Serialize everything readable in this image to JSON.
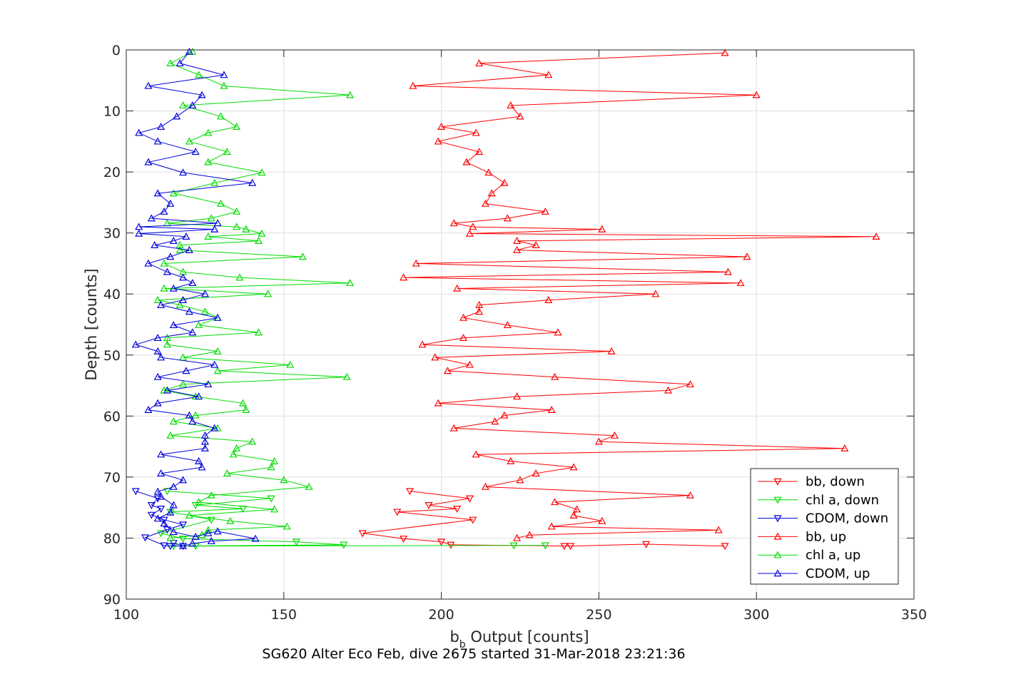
{
  "chart_data": {
    "type": "line",
    "title": "",
    "xlabel_main": "b",
    "xlabel_sub": "b",
    "xlabel_rest": " Output [counts]",
    "ylabel": "Depth [counts]",
    "caption": "SG620 Alter Eco Feb, dive 2675 started 31-Mar-2018 23:21:36",
    "xlim": [
      100,
      350
    ],
    "ylim": [
      0,
      90
    ],
    "y_reversed": true,
    "grid": true,
    "legend_placement": "bottom-right",
    "xticks": [
      "100",
      "150",
      "200",
      "250",
      "300",
      "350"
    ],
    "yticks": [
      "0",
      "10",
      "20",
      "30",
      "40",
      "50",
      "60",
      "70",
      "80",
      "90"
    ],
    "series": [
      {
        "name": "bb, down",
        "color": "#ff0000",
        "marker": "triangle-down",
        "points": [
          [
            190,
            72.3
          ],
          [
            209,
            73.5
          ],
          [
            196,
            74.6
          ],
          [
            205,
            75.2
          ],
          [
            186,
            75.7
          ],
          [
            210,
            77
          ],
          [
            175,
            79.2
          ],
          [
            188,
            80.1
          ],
          [
            200,
            80.6
          ],
          [
            203,
            81.1
          ],
          [
            239,
            81.3
          ],
          [
            241,
            81.3
          ],
          [
            265,
            81
          ],
          [
            290,
            81.3
          ]
        ]
      },
      {
        "name": "chl a, down",
        "color": "#00dd00",
        "marker": "triangle-down",
        "points": [
          [
            113,
            72.3
          ],
          [
            146,
            73.5
          ],
          [
            122,
            74.6
          ],
          [
            137,
            75.2
          ],
          [
            114,
            75.7
          ],
          [
            127,
            77
          ],
          [
            111,
            79.2
          ],
          [
            118,
            80.1
          ],
          [
            154,
            80.6
          ],
          [
            169,
            81.1
          ],
          [
            115,
            81.3
          ],
          [
            122,
            81.3
          ],
          [
            233,
            81.2
          ],
          [
            223,
            81.2
          ]
        ]
      },
      {
        "name": "CDOM, down",
        "color": "#0000dd",
        "marker": "triangle-down",
        "points": [
          [
            103,
            72.3
          ],
          [
            110,
            73.5
          ],
          [
            108,
            74.6
          ],
          [
            111,
            75.2
          ],
          [
            108,
            76.2
          ],
          [
            112,
            77
          ],
          [
            118,
            77.8
          ],
          [
            113,
            78.6
          ],
          [
            106,
            79.9
          ],
          [
            112,
            81.2
          ],
          [
            114,
            81.3
          ],
          [
            118,
            81.3
          ],
          [
            115,
            80.8
          ]
        ]
      },
      {
        "name": "bb, up",
        "color": "#ff0000",
        "marker": "triangle-up",
        "points": [
          [
            290,
            0.5
          ],
          [
            212,
            2.2
          ],
          [
            234,
            4.1
          ],
          [
            191,
            5.9
          ],
          [
            300,
            7.4
          ],
          [
            222,
            9.1
          ],
          [
            225,
            10.9
          ],
          [
            200,
            12.6
          ],
          [
            211,
            13.6
          ],
          [
            199,
            15
          ],
          [
            212,
            16.7
          ],
          [
            208,
            18.4
          ],
          [
            215,
            20.1
          ],
          [
            220,
            21.8
          ],
          [
            216,
            23.5
          ],
          [
            214,
            25.2
          ],
          [
            233,
            26.5
          ],
          [
            221,
            27.6
          ],
          [
            204,
            28.4
          ],
          [
            210,
            29
          ],
          [
            251,
            29.4
          ],
          [
            209,
            30.1
          ],
          [
            338,
            30.6
          ],
          [
            224,
            31.3
          ],
          [
            230,
            32
          ],
          [
            224,
            32.8
          ],
          [
            297,
            33.9
          ],
          [
            192,
            35
          ],
          [
            291,
            36.4
          ],
          [
            188,
            37.3
          ],
          [
            295,
            38.2
          ],
          [
            205,
            39.1
          ],
          [
            268,
            40
          ],
          [
            234,
            41
          ],
          [
            212,
            41.8
          ],
          [
            212,
            42.9
          ],
          [
            207,
            43.9
          ],
          [
            221,
            45.1
          ],
          [
            237,
            46.3
          ],
          [
            207,
            47.2
          ],
          [
            194,
            48.3
          ],
          [
            254,
            49.4
          ],
          [
            198,
            50.4
          ],
          [
            209,
            51.6
          ],
          [
            202,
            52.6
          ],
          [
            236,
            53.6
          ],
          [
            279,
            54.8
          ],
          [
            272,
            55.8
          ],
          [
            224,
            56.8
          ],
          [
            199,
            57.9
          ],
          [
            235,
            59
          ],
          [
            220,
            59.9
          ],
          [
            217,
            60.9
          ],
          [
            204,
            62
          ],
          [
            255,
            63.2
          ],
          [
            250,
            64.2
          ],
          [
            328,
            65.3
          ],
          [
            211,
            66.3
          ],
          [
            222,
            67.4
          ],
          [
            242,
            68.4
          ],
          [
            230,
            69.4
          ],
          [
            225,
            70.5
          ],
          [
            214,
            71.6
          ],
          [
            279,
            73
          ],
          [
            236,
            74.1
          ],
          [
            243,
            75.3
          ],
          [
            242,
            76.3
          ],
          [
            251,
            77.2
          ],
          [
            235,
            78.1
          ],
          [
            288,
            78.7
          ],
          [
            228,
            79.5
          ],
          [
            224,
            80
          ]
        ]
      },
      {
        "name": "chl a, up",
        "color": "#00dd00",
        "marker": "triangle-up",
        "points": [
          [
            121,
            0.3
          ],
          [
            114,
            2.2
          ],
          [
            123,
            4.1
          ],
          [
            131,
            5.9
          ],
          [
            171,
            7.4
          ],
          [
            118,
            9.1
          ],
          [
            130,
            10.9
          ],
          [
            135,
            12.6
          ],
          [
            126,
            13.6
          ],
          [
            120,
            15
          ],
          [
            132,
            16.7
          ],
          [
            126,
            18.4
          ],
          [
            143,
            20.1
          ],
          [
            128,
            21.8
          ],
          [
            115,
            23.5
          ],
          [
            130,
            25.2
          ],
          [
            135,
            26.5
          ],
          [
            127,
            27.6
          ],
          [
            113,
            28.4
          ],
          [
            135,
            29
          ],
          [
            138,
            29.4
          ],
          [
            143,
            30.1
          ],
          [
            126,
            30.6
          ],
          [
            142,
            31.3
          ],
          [
            117,
            32
          ],
          [
            117,
            32.8
          ],
          [
            156,
            33.9
          ],
          [
            112,
            35
          ],
          [
            118,
            36.4
          ],
          [
            136,
            37.3
          ],
          [
            171,
            38.2
          ],
          [
            112,
            39.1
          ],
          [
            145,
            40
          ],
          [
            110,
            41
          ],
          [
            117,
            41.8
          ],
          [
            125,
            42.9
          ],
          [
            129,
            43.9
          ],
          [
            123,
            45.1
          ],
          [
            142,
            46.3
          ],
          [
            113,
            47.2
          ],
          [
            113,
            48.3
          ],
          [
            129,
            49.4
          ],
          [
            118,
            50.4
          ],
          [
            152,
            51.6
          ],
          [
            129,
            52.6
          ],
          [
            170,
            53.6
          ],
          [
            118,
            54.8
          ],
          [
            112,
            55.8
          ],
          [
            122,
            56.8
          ],
          [
            137,
            57.9
          ],
          [
            138,
            59
          ],
          [
            122,
            59.9
          ],
          [
            115,
            60.9
          ],
          [
            129,
            62
          ],
          [
            114,
            63.2
          ],
          [
            140,
            64.2
          ],
          [
            135,
            65.3
          ],
          [
            134,
            66.3
          ],
          [
            147,
            67.4
          ],
          [
            146,
            68.4
          ],
          [
            132,
            69.4
          ],
          [
            150,
            70.5
          ],
          [
            158,
            71.6
          ],
          [
            127,
            73
          ],
          [
            123,
            74.1
          ],
          [
            147,
            75.3
          ],
          [
            120,
            76.3
          ],
          [
            133,
            77.2
          ],
          [
            151,
            78.1
          ],
          [
            126,
            78.7
          ],
          [
            124,
            79.5
          ],
          [
            114,
            80
          ]
        ]
      },
      {
        "name": "CDOM, up",
        "color": "#0000dd",
        "marker": "triangle-up",
        "points": [
          [
            120,
            0.3
          ],
          [
            117,
            2.2
          ],
          [
            131,
            4.1
          ],
          [
            107,
            5.9
          ],
          [
            124,
            7.4
          ],
          [
            121,
            9.1
          ],
          [
            116,
            10.9
          ],
          [
            111,
            12.6
          ],
          [
            104,
            13.6
          ],
          [
            110,
            15
          ],
          [
            122,
            16.7
          ],
          [
            107,
            18.4
          ],
          [
            118,
            20.1
          ],
          [
            140,
            21.8
          ],
          [
            110,
            23.5
          ],
          [
            114,
            25.2
          ],
          [
            112,
            26.5
          ],
          [
            108,
            27.6
          ],
          [
            129,
            28.4
          ],
          [
            104,
            29
          ],
          [
            128,
            29.4
          ],
          [
            104,
            30.1
          ],
          [
            119,
            30.6
          ],
          [
            115,
            31.3
          ],
          [
            109,
            32
          ],
          [
            120,
            32.8
          ],
          [
            114,
            33.9
          ],
          [
            107,
            35
          ],
          [
            113,
            36.4
          ],
          [
            118,
            37.3
          ],
          [
            121,
            38.2
          ],
          [
            115,
            39.1
          ],
          [
            125,
            40
          ],
          [
            118,
            41
          ],
          [
            111,
            41.8
          ],
          [
            120,
            42.9
          ],
          [
            129,
            43.9
          ],
          [
            115,
            45.1
          ],
          [
            121,
            46.3
          ],
          [
            110,
            47.2
          ],
          [
            103,
            48.3
          ],
          [
            110,
            49.4
          ],
          [
            111,
            50.4
          ],
          [
            128,
            51.6
          ],
          [
            119,
            52.6
          ],
          [
            110,
            53.6
          ],
          [
            126,
            54.8
          ],
          [
            113,
            55.8
          ],
          [
            123,
            56.8
          ],
          [
            110,
            57.9
          ],
          [
            107,
            59
          ],
          [
            120,
            59.9
          ],
          [
            121,
            60.9
          ],
          [
            128,
            62
          ],
          [
            125,
            63.2
          ],
          [
            125,
            64.2
          ],
          [
            125,
            65.3
          ],
          [
            111,
            66.3
          ],
          [
            123,
            67.4
          ],
          [
            124,
            68.4
          ],
          [
            111,
            69.4
          ],
          [
            118,
            70.5
          ],
          [
            115,
            71.6
          ],
          [
            110,
            72.4
          ],
          [
            111,
            73.2
          ],
          [
            115,
            74.6
          ],
          [
            114,
            75.8
          ],
          [
            110,
            76.8
          ],
          [
            112,
            77.6
          ],
          [
            115,
            79
          ],
          [
            122,
            79.8
          ],
          [
            126,
            79.2
          ],
          [
            129,
            78.9
          ],
          [
            141,
            80.1
          ],
          [
            127,
            80.5
          ],
          [
            121,
            80.9
          ],
          [
            118,
            81.3
          ]
        ]
      }
    ]
  }
}
